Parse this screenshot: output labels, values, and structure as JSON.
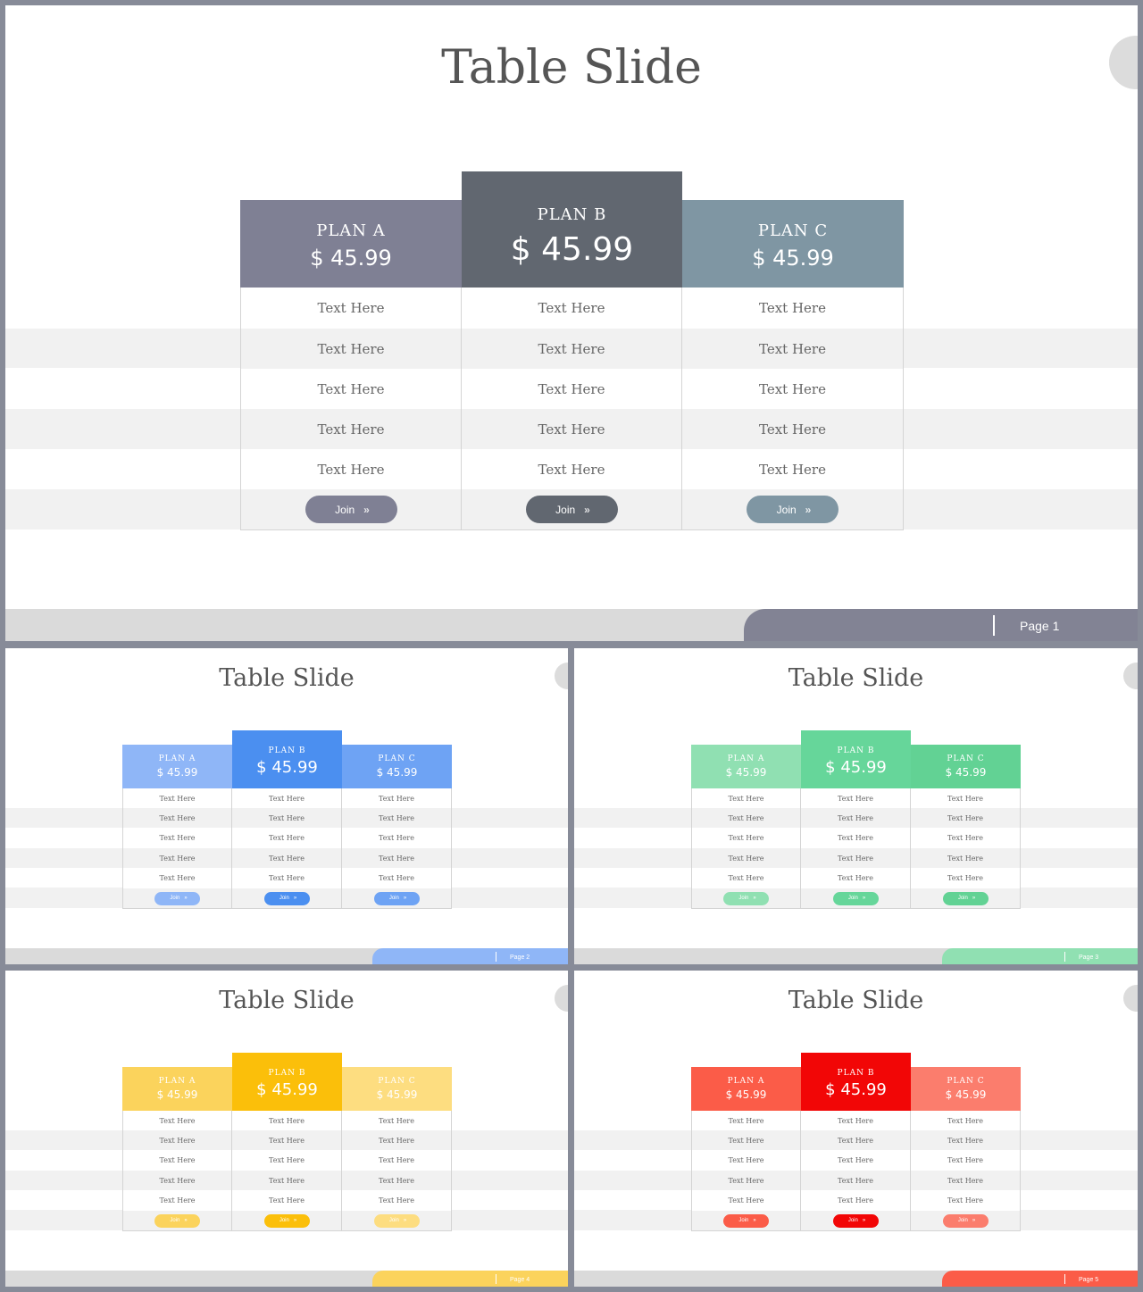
{
  "slides": [
    {
      "title": "Table Slide",
      "page": "Page 1",
      "colors": {
        "a": "#7f8094",
        "b": "#616770",
        "c": "#7f96a3",
        "footer": "#828394"
      },
      "plans": [
        {
          "name": "PLAN A",
          "price": "$ 45.99",
          "features": [
            "Text Here",
            "Text Here",
            "Text Here",
            "Text Here",
            "Text Here"
          ],
          "button": "Join"
        },
        {
          "name": "PLAN B",
          "price": "$ 45.99",
          "features": [
            "Text Here",
            "Text Here",
            "Text Here",
            "Text Here",
            "Text Here"
          ],
          "button": "Join"
        },
        {
          "name": "PLAN C",
          "price": "$ 45.99",
          "features": [
            "Text Here",
            "Text Here",
            "Text Here",
            "Text Here",
            "Text Here"
          ],
          "button": "Join"
        }
      ]
    },
    {
      "title": "Table Slide",
      "page": "Page 2",
      "colors": {
        "a": "#8fb6f7",
        "b": "#4b8ff0",
        "c": "#6ea3f4",
        "footer": "#8fb6f7"
      },
      "plans": [
        {
          "name": "PLAN A",
          "price": "$ 45.99",
          "features": [
            "Text Here",
            "Text Here",
            "Text Here",
            "Text Here",
            "Text Here"
          ],
          "button": "Join"
        },
        {
          "name": "PLAN B",
          "price": "$ 45.99",
          "features": [
            "Text Here",
            "Text Here",
            "Text Here",
            "Text Here",
            "Text Here"
          ],
          "button": "Join"
        },
        {
          "name": "PLAN C",
          "price": "$ 45.99",
          "features": [
            "Text Here",
            "Text Here",
            "Text Here",
            "Text Here",
            "Text Here"
          ],
          "button": "Join"
        }
      ]
    },
    {
      "title": "Table Slide",
      "page": "Page 3",
      "colors": {
        "a": "#90e0b2",
        "b": "#66d69a",
        "c": "#62d294",
        "footer": "#90e0b2"
      },
      "plans": [
        {
          "name": "PLAN A",
          "price": "$ 45.99",
          "features": [
            "Text Here",
            "Text Here",
            "Text Here",
            "Text Here",
            "Text Here"
          ],
          "button": "Join"
        },
        {
          "name": "PLAN B",
          "price": "$ 45.99",
          "features": [
            "Text Here",
            "Text Here",
            "Text Here",
            "Text Here",
            "Text Here"
          ],
          "button": "Join"
        },
        {
          "name": "PLAN C",
          "price": "$ 45.99",
          "features": [
            "Text Here",
            "Text Here",
            "Text Here",
            "Text Here",
            "Text Here"
          ],
          "button": "Join"
        }
      ]
    },
    {
      "title": "Table Slide",
      "page": "Page 4",
      "colors": {
        "a": "#fbd35c",
        "b": "#fbbf0a",
        "c": "#fddd80",
        "footer": "#fbd35c"
      },
      "plans": [
        {
          "name": "PLAN A",
          "price": "$ 45.99",
          "features": [
            "Text Here",
            "Text Here",
            "Text Here",
            "Text Here",
            "Text Here"
          ],
          "button": "Join"
        },
        {
          "name": "PLAN B",
          "price": "$ 45.99",
          "features": [
            "Text Here",
            "Text Here",
            "Text Here",
            "Text Here",
            "Text Here"
          ],
          "button": "Join"
        },
        {
          "name": "PLAN C",
          "price": "$ 45.99",
          "features": [
            "Text Here",
            "Text Here",
            "Text Here",
            "Text Here",
            "Text Here"
          ],
          "button": "Join"
        }
      ]
    },
    {
      "title": "Table Slide",
      "page": "Page 5",
      "colors": {
        "a": "#fb5c48",
        "b": "#f20606",
        "c": "#fb7d6d",
        "footer": "#fb5c48"
      },
      "plans": [
        {
          "name": "PLAN A",
          "price": "$ 45.99",
          "features": [
            "Text Here",
            "Text Here",
            "Text Here",
            "Text Here",
            "Text Here"
          ],
          "button": "Join"
        },
        {
          "name": "PLAN B",
          "price": "$ 45.99",
          "features": [
            "Text Here",
            "Text Here",
            "Text Here",
            "Text Here",
            "Text Here"
          ],
          "button": "Join"
        },
        {
          "name": "PLAN C",
          "price": "$ 45.99",
          "features": [
            "Text Here",
            "Text Here",
            "Text Here",
            "Text Here",
            "Text Here"
          ],
          "button": "Join"
        }
      ]
    }
  ]
}
